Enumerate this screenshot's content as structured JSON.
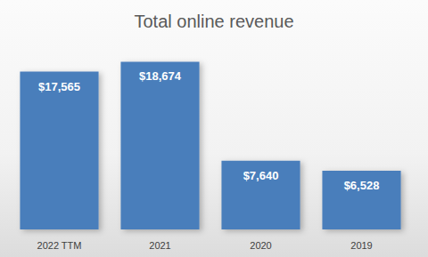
{
  "chart_data": {
    "type": "bar",
    "title": "Total online revenue",
    "categories": [
      "2022 TTM",
      "2021",
      "2020",
      "2019"
    ],
    "values": [
      17565,
      18674,
      7640,
      6528
    ],
    "value_labels": [
      "$17,565",
      "$18,674",
      "$7,640",
      "$6,528"
    ],
    "color": "#4a7ebb",
    "ylim": [
      0,
      20000
    ],
    "grid": false,
    "data_labels": true,
    "tick_labels": "x"
  }
}
